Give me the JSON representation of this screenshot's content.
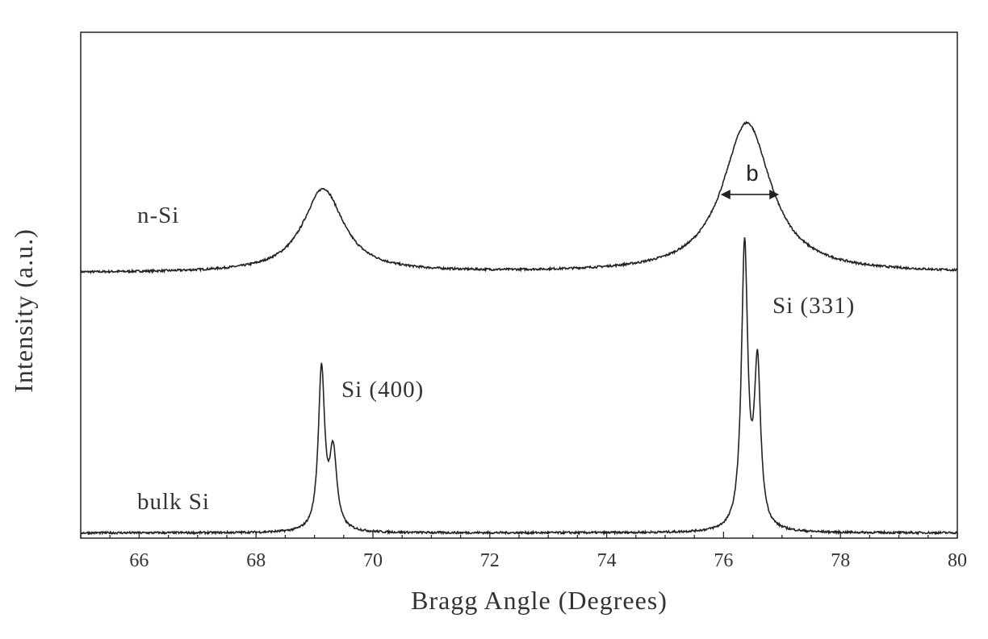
{
  "chart_data": {
    "type": "line",
    "title": "",
    "xlabel": "Bragg Angle (Degrees)",
    "ylabel": "Intensity (a.u.)",
    "xlim": [
      65,
      80
    ],
    "ylim": [
      0,
      1.45
    ],
    "x_ticks": [
      "66",
      "68",
      "70",
      "72",
      "74",
      "76",
      "78",
      "80"
    ],
    "y_ticks_shown": false,
    "grid": false,
    "series": [
      {
        "name": "n-Si",
        "baseline": 0.76,
        "peaks": [
          {
            "x": 69.15,
            "height": 0.24,
            "hwhm": 0.42
          },
          {
            "x": 76.4,
            "height": 0.43,
            "hwhm": 0.5
          }
        ]
      },
      {
        "name": "bulk Si",
        "baseline": 0.015,
        "peaks": [
          {
            "x": 69.12,
            "height": 0.46,
            "hwhm": 0.065
          },
          {
            "x": 69.32,
            "height": 0.22,
            "hwhm": 0.075
          },
          {
            "x": 76.36,
            "height": 0.81,
            "hwhm": 0.065
          },
          {
            "x": 76.58,
            "height": 0.46,
            "hwhm": 0.065
          }
        ]
      }
    ],
    "annotations": {
      "n_si_label": "n-Si",
      "bulk_si_label": "bulk Si",
      "peak_400_label": "Si (400)",
      "peak_331_label": "Si (331)",
      "fwhm_label": "b",
      "fwhm_range": [
        75.95,
        76.95
      ],
      "fwhm_level": 0.985
    },
    "style": {
      "line_color": "#222222",
      "axis_color": "#222222",
      "text_color": "#333333"
    }
  }
}
